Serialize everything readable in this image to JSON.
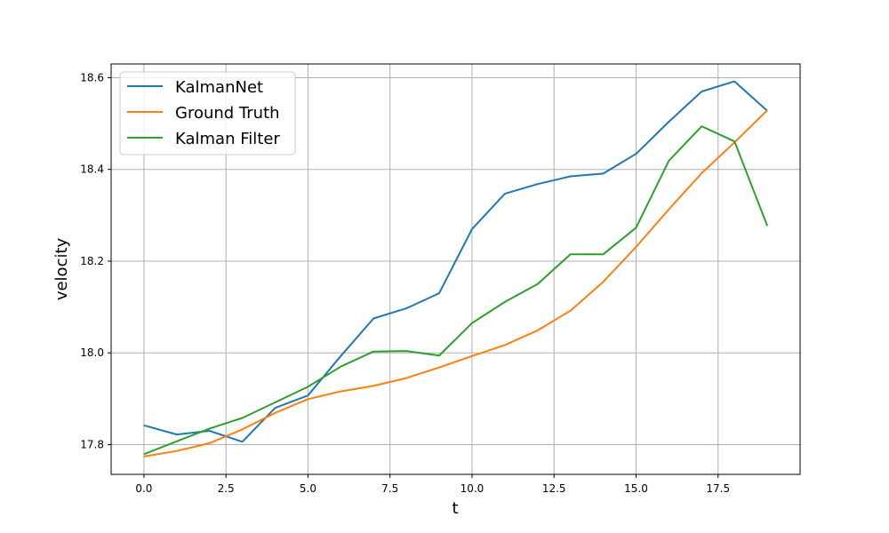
{
  "chart_data": {
    "type": "line",
    "xlabel": "t",
    "ylabel": "velocity",
    "xlim": [
      -1,
      20
    ],
    "ylim": [
      17.735,
      18.63
    ],
    "xticks": [
      0.0,
      2.5,
      5.0,
      7.5,
      10.0,
      12.5,
      15.0,
      17.5
    ],
    "xtick_labels": [
      "0.0",
      "2.5",
      "5.0",
      "7.5",
      "10.0",
      "12.5",
      "15.0",
      "17.5"
    ],
    "yticks": [
      17.8,
      18.0,
      18.2,
      18.4,
      18.6
    ],
    "ytick_labels": [
      "17.8",
      "18.0",
      "18.2",
      "18.4",
      "18.6"
    ],
    "grid": true,
    "legend_position": "top-left",
    "x": [
      0,
      1,
      2,
      3,
      4,
      5,
      6,
      7,
      8,
      9,
      10,
      11,
      12,
      13,
      14,
      15,
      16,
      17,
      18,
      19
    ],
    "series": [
      {
        "name": "KalmanNet",
        "color": "#1f77b4",
        "values": [
          17.842,
          17.822,
          17.83,
          17.806,
          17.88,
          17.907,
          17.993,
          18.075,
          18.097,
          18.13,
          18.27,
          18.347,
          18.368,
          18.385,
          18.391,
          18.434,
          18.504,
          18.57,
          18.592,
          18.528
        ]
      },
      {
        "name": "Ground Truth",
        "color": "#ff7f0e",
        "values": [
          17.774,
          17.786,
          17.803,
          17.833,
          17.869,
          17.899,
          17.916,
          17.928,
          17.945,
          17.968,
          17.993,
          18.017,
          18.049,
          18.092,
          18.155,
          18.231,
          18.313,
          18.392,
          18.459,
          18.529
        ]
      },
      {
        "name": "Kalman Filter",
        "color": "#2ca02c",
        "values": [
          17.779,
          17.807,
          17.835,
          17.858,
          17.892,
          17.926,
          17.97,
          18.003,
          18.004,
          17.994,
          18.065,
          18.111,
          18.15,
          18.215,
          18.215,
          18.273,
          18.419,
          18.494,
          18.461,
          18.277
        ]
      }
    ]
  }
}
